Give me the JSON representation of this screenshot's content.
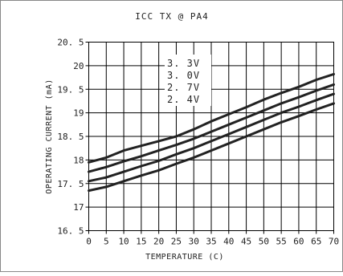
{
  "chart_data": {
    "type": "line",
    "title": "ICC TX @ PA4",
    "xlabel": "TEMPERATURE (C)",
    "ylabel": "OPERATING CURRENT (mA)",
    "xlim": [
      0,
      70
    ],
    "ylim": [
      16.5,
      20.5
    ],
    "x_ticks": [
      "0",
      "5",
      "10",
      "15",
      "20",
      "25",
      "30",
      "35",
      "40",
      "45",
      "50",
      "55",
      "60",
      "65",
      "70"
    ],
    "y_ticks": [
      "20. 5",
      "20",
      "19. 5",
      "19",
      "18. 5",
      "18",
      "17. 5",
      "17",
      "16. 5"
    ],
    "grid": true,
    "legend_position": "top-center",
    "x": [
      0,
      5,
      10,
      15,
      20,
      25,
      30,
      35,
      40,
      45,
      50,
      55,
      60,
      65,
      70
    ],
    "series": [
      {
        "name": "3. 3V",
        "values": [
          17.95,
          18.05,
          18.2,
          18.3,
          18.4,
          18.5,
          18.65,
          18.82,
          18.97,
          19.12,
          19.28,
          19.42,
          19.55,
          19.7,
          19.82
        ]
      },
      {
        "name": "3. 0V",
        "values": [
          17.75,
          17.85,
          17.97,
          18.08,
          18.2,
          18.32,
          18.45,
          18.6,
          18.75,
          18.9,
          19.05,
          19.2,
          19.33,
          19.47,
          19.6
        ]
      },
      {
        "name": "2. 7V",
        "values": [
          17.55,
          17.63,
          17.75,
          17.87,
          17.98,
          18.12,
          18.25,
          18.4,
          18.55,
          18.7,
          18.85,
          19.0,
          19.13,
          19.27,
          19.4
        ]
      },
      {
        "name": "2. 4V",
        "values": [
          17.35,
          17.43,
          17.55,
          17.67,
          17.78,
          17.92,
          18.05,
          18.2,
          18.35,
          18.5,
          18.65,
          18.8,
          18.93,
          19.07,
          19.2
        ]
      }
    ],
    "colors": {
      "line": "#222222",
      "grid": "#000000",
      "frame": "#888888",
      "background": "#ffffff"
    }
  }
}
